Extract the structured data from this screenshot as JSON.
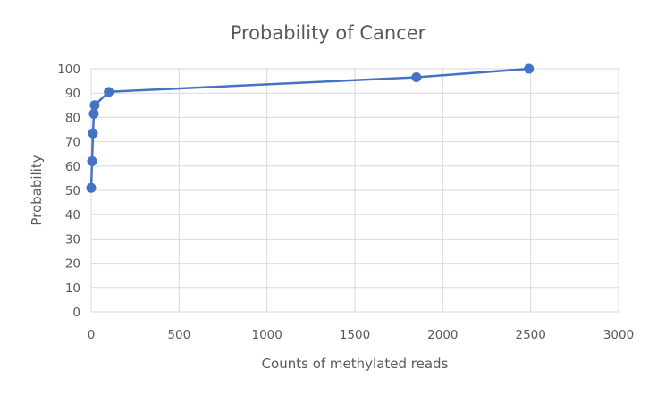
{
  "chart_data": {
    "type": "scatter",
    "title": "Probability of Cancer",
    "xlabel": "Counts of methylated reads",
    "ylabel": "Probability",
    "xlim": [
      0,
      3000
    ],
    "ylim": [
      0,
      100
    ],
    "xticks": [
      0,
      500,
      1000,
      1500,
      2000,
      2500,
      3000
    ],
    "yticks": [
      0,
      10,
      20,
      30,
      40,
      50,
      60,
      70,
      80,
      90,
      100
    ],
    "grid": true,
    "legend": "none",
    "series": [
      {
        "color": "#4472c4",
        "marker": "circle",
        "line": true,
        "x": [
          0,
          5,
          10,
          15,
          20,
          100,
          1850,
          2490
        ],
        "y": [
          51,
          62,
          73.5,
          81.5,
          85,
          90.5,
          96.5,
          100
        ]
      }
    ]
  }
}
